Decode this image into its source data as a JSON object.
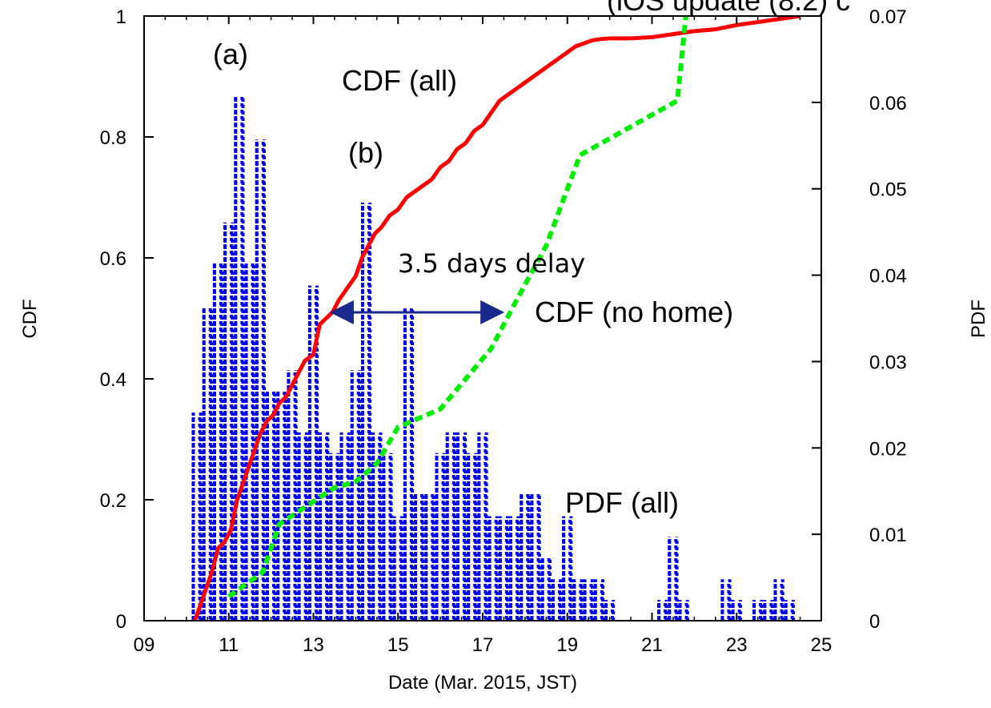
{
  "chart_data": {
    "type": "line",
    "title": "(iOS update (8.2) c",
    "xlabel": "Date (Mar. 2015, JST)",
    "ylabel": "CDF",
    "y2label": "PDF",
    "xlim": [
      9,
      25
    ],
    "ylim": [
      0,
      1
    ],
    "y2lim": [
      0,
      0.07
    ],
    "x_tick_labels": [
      "09",
      "11",
      "13",
      "15",
      "17",
      "19",
      "21",
      "23",
      "25"
    ],
    "x_tick_values": [
      9,
      11,
      13,
      15,
      17,
      19,
      21,
      23,
      25
    ],
    "y_ticks": [
      "0",
      "0.2",
      "0.4",
      "0.6",
      "0.8",
      "1"
    ],
    "y_tick_values": [
      0,
      0.2,
      0.4,
      0.6,
      0.8,
      1
    ],
    "y2_ticks": [
      "0",
      "0.01",
      "0.02",
      "0.03",
      "0.04",
      "0.05",
      "0.06",
      "0.07"
    ],
    "y2_tick_values": [
      0,
      0.01,
      0.02,
      0.03,
      0.04,
      0.05,
      0.06,
      0.07
    ],
    "grid": false,
    "series": [
      {
        "name": "CDF (all)",
        "type": "line",
        "axis": "left",
        "color": "#ff0000",
        "style": "solid",
        "x": [
          10.2,
          10.3,
          10.45,
          10.6,
          10.75,
          10.9,
          11.05,
          11.2,
          11.35,
          11.45,
          11.6,
          11.75,
          11.9,
          12.05,
          12.2,
          12.35,
          12.5,
          12.65,
          12.8,
          13.0,
          13.15,
          13.3,
          13.45,
          13.6,
          13.8,
          14.0,
          14.15,
          14.3,
          14.45,
          14.6,
          14.8,
          15.0,
          15.2,
          15.4,
          15.6,
          15.8,
          16.0,
          16.2,
          16.4,
          16.6,
          16.8,
          17.0,
          17.2,
          17.4,
          17.6,
          17.8,
          18.0,
          18.2,
          18.4,
          18.6,
          18.8,
          19.0,
          19.2,
          19.4,
          19.6,
          19.8,
          20.0,
          20.5,
          21.0,
          21.5,
          21.7,
          22.0,
          22.5,
          23.0,
          23.5,
          24.0,
          24.5
        ],
        "y": [
          0.0,
          0.02,
          0.05,
          0.08,
          0.12,
          0.13,
          0.15,
          0.2,
          0.23,
          0.25,
          0.28,
          0.31,
          0.33,
          0.34,
          0.36,
          0.37,
          0.39,
          0.41,
          0.43,
          0.44,
          0.49,
          0.5,
          0.51,
          0.53,
          0.55,
          0.57,
          0.6,
          0.62,
          0.64,
          0.65,
          0.67,
          0.68,
          0.7,
          0.71,
          0.72,
          0.73,
          0.75,
          0.76,
          0.78,
          0.79,
          0.81,
          0.82,
          0.84,
          0.86,
          0.87,
          0.88,
          0.89,
          0.9,
          0.91,
          0.92,
          0.93,
          0.94,
          0.95,
          0.955,
          0.96,
          0.962,
          0.963,
          0.963,
          0.965,
          0.97,
          0.972,
          0.975,
          0.978,
          0.985,
          0.99,
          0.995,
          1.0
        ]
      },
      {
        "name": "CDF (no home)",
        "type": "line",
        "axis": "left",
        "color": "#00ee00",
        "style": "dashed",
        "x": [
          11.0,
          11.8,
          12.2,
          13.5,
          14.0,
          14.5,
          15.0,
          16.0,
          17.2,
          17.8,
          18.5,
          19.3,
          21.6,
          21.8
        ],
        "y": [
          0.04,
          0.08,
          0.16,
          0.22,
          0.23,
          0.26,
          0.32,
          0.35,
          0.45,
          0.53,
          0.62,
          0.77,
          0.86,
          1.0
        ]
      },
      {
        "name": "PDF (all)",
        "type": "bar",
        "axis": "right",
        "color": "#0000ee",
        "style": "dotted",
        "x": [
          10.25,
          10.5,
          10.75,
          11.0,
          11.25,
          11.5,
          11.75,
          12.0,
          12.25,
          12.5,
          12.75,
          13.0,
          13.25,
          13.5,
          13.75,
          14.0,
          14.25,
          14.5,
          14.75,
          15.0,
          15.25,
          15.5,
          15.75,
          16.0,
          16.25,
          16.5,
          16.75,
          17.0,
          17.25,
          17.5,
          17.75,
          18.0,
          18.25,
          18.5,
          18.75,
          19.0,
          19.25,
          19.5,
          19.75,
          20.0,
          21.25,
          21.5,
          21.75,
          22.75,
          23.0,
          23.5,
          23.75,
          24.0,
          24.25
        ],
        "values": [
          0.0241,
          0.0363,
          0.0412,
          0.0461,
          0.0605,
          0.0412,
          0.0557,
          0.0266,
          0.0266,
          0.029,
          0.0218,
          0.0388,
          0.0218,
          0.0194,
          0.0218,
          0.029,
          0.0484,
          0.0218,
          0.0194,
          0.0121,
          0.0363,
          0.0145,
          0.0145,
          0.0194,
          0.0218,
          0.0218,
          0.0194,
          0.0218,
          0.0121,
          0.0121,
          0.0121,
          0.0145,
          0.0145,
          0.0073,
          0.0048,
          0.0121,
          0.0048,
          0.0048,
          0.0048,
          0.0024,
          0.0024,
          0.0097,
          0.0024,
          0.0048,
          0.0024,
          0.0024,
          0.0024,
          0.0048,
          0.0024
        ]
      }
    ],
    "annotations": [
      "(a)",
      "(b)",
      "CDF (all)",
      "3.5 days delay",
      "CDF (no home)",
      "PDF (all)"
    ],
    "arrow": {
      "x_from": 13.5,
      "x_to": 17.4,
      "y": 0.51
    }
  }
}
